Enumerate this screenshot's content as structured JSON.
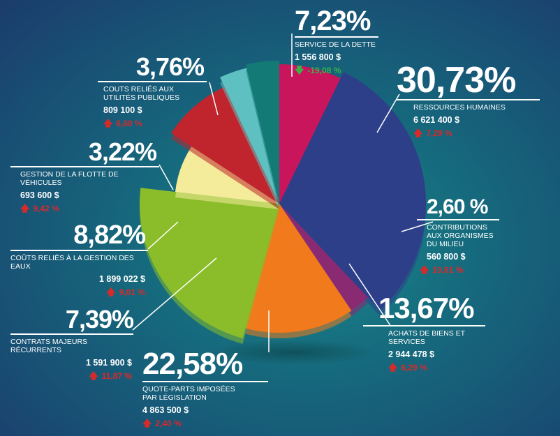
{
  "chart_data": {
    "type": "pie",
    "slices": [
      {
        "pct": "7,23%",
        "value": 7.23,
        "label": "SERVICE DE LA DETTE",
        "amount": "1 556 800 $",
        "change": "-19,08 %",
        "direction": "down",
        "color": "#c8155c"
      },
      {
        "pct": "30,73%",
        "value": 30.73,
        "label": "RESSOURCES HUMAINES",
        "amount": "6 621 400 $",
        "change": "7,29 %",
        "direction": "up",
        "color": "#2d3f88"
      },
      {
        "pct": "2,60 %",
        "value": 2.6,
        "label": "CONTRIBUTIONS AUX ORGANISMES DU MILIEU",
        "amount": "560 800 $",
        "change": "10,61 %",
        "direction": "up",
        "color": "#8a2a72"
      },
      {
        "pct": "13,67%",
        "value": 13.67,
        "label": "ACHATS DE BIENS ET SERVICES",
        "amount": "2 944 478 $",
        "change": "6,29 %",
        "direction": "up",
        "color": "#f07a1c"
      },
      {
        "pct": "22,58%",
        "value": 22.58,
        "label": "QUOTE-PARTS IMPOSÉES PAR LÉGISLATION",
        "amount": "4 863 500 $",
        "change": "2,40 %",
        "direction": "up",
        "color": "#8bbd2a"
      },
      {
        "pct": "7,39%",
        "value": 7.39,
        "label": "CONTRATS MAJEURS RÉCURRENTS",
        "amount": "1 591 900 $",
        "change": "11,87 %",
        "direction": "up",
        "color": "#f4ec9a"
      },
      {
        "pct": "8,82%",
        "value": 8.82,
        "label": "COÛTS RELIÉS À LA GESTION DES EAUX",
        "amount": "1 899 022 $",
        "change": "9,01 %",
        "direction": "up",
        "color": "#c0242c"
      },
      {
        "pct": "3,22%",
        "value": 3.22,
        "label": "GESTION DE LA FLOTTE DE VÉHICULES",
        "amount": "693 600 $",
        "change": "9,42 %",
        "direction": "up",
        "color": "#5ec0c0"
      },
      {
        "pct": "3,76%",
        "value": 3.76,
        "label": "COUTS RELIÉS AUX UTILITÉS PUBLIQUES",
        "amount": "809 100 $",
        "change": "6,60 %",
        "direction": "up",
        "color": "#147a76"
      }
    ]
  }
}
